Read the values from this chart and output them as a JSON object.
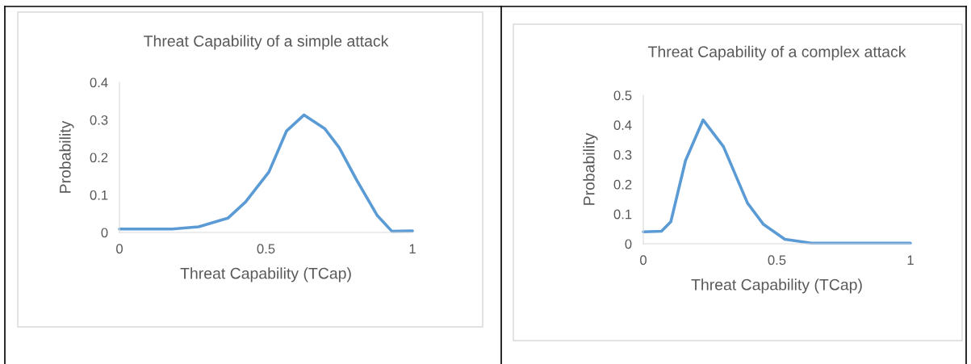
{
  "chart_data": [
    {
      "type": "line",
      "title": "Threat Capability of a simple attack",
      "xlabel": "Threat Capability (TCap)",
      "ylabel": "Probability",
      "series": [
        {
          "color": "#5b9bd5",
          "x": [
            0,
            0.18,
            0.27,
            0.37,
            0.43,
            0.51,
            0.57,
            0.63,
            0.7,
            0.75,
            0.81,
            0.88,
            0.93,
            1
          ],
          "values": [
            0.009,
            0.009,
            0.015,
            0.038,
            0.081,
            0.161,
            0.27,
            0.313,
            0.277,
            0.226,
            0.139,
            0.045,
            0.003,
            0.004
          ]
        }
      ],
      "xlim": [
        0,
        1
      ],
      "xticks": [
        0,
        0.5,
        1
      ],
      "ylim": [
        0,
        0.4
      ],
      "yticks": [
        0,
        0.1,
        0.2,
        0.3,
        0.4
      ],
      "grid": false,
      "legend": false,
      "marker": "none",
      "line_style": "solid"
    },
    {
      "type": "line",
      "title": "Threat Capability of a complex attack",
      "xlabel": "Threat Capability (TCap)",
      "ylabel": "Probability",
      "series": [
        {
          "color": "#5b9bd5",
          "x": [
            0,
            0.068,
            0.103,
            0.158,
            0.224,
            0.3,
            0.39,
            0.45,
            0.53,
            0.63,
            1
          ],
          "values": [
            0.04,
            0.042,
            0.074,
            0.28,
            0.417,
            0.327,
            0.137,
            0.065,
            0.015,
            0.002,
            0.002
          ]
        }
      ],
      "xlim": [
        0,
        1
      ],
      "xticks": [
        0,
        0.5,
        1
      ],
      "ylim": [
        0,
        0.5
      ],
      "yticks": [
        0,
        0.1,
        0.2,
        0.3,
        0.4,
        0.5
      ],
      "grid": false,
      "legend": false,
      "marker": "none",
      "line_style": "solid"
    }
  ]
}
